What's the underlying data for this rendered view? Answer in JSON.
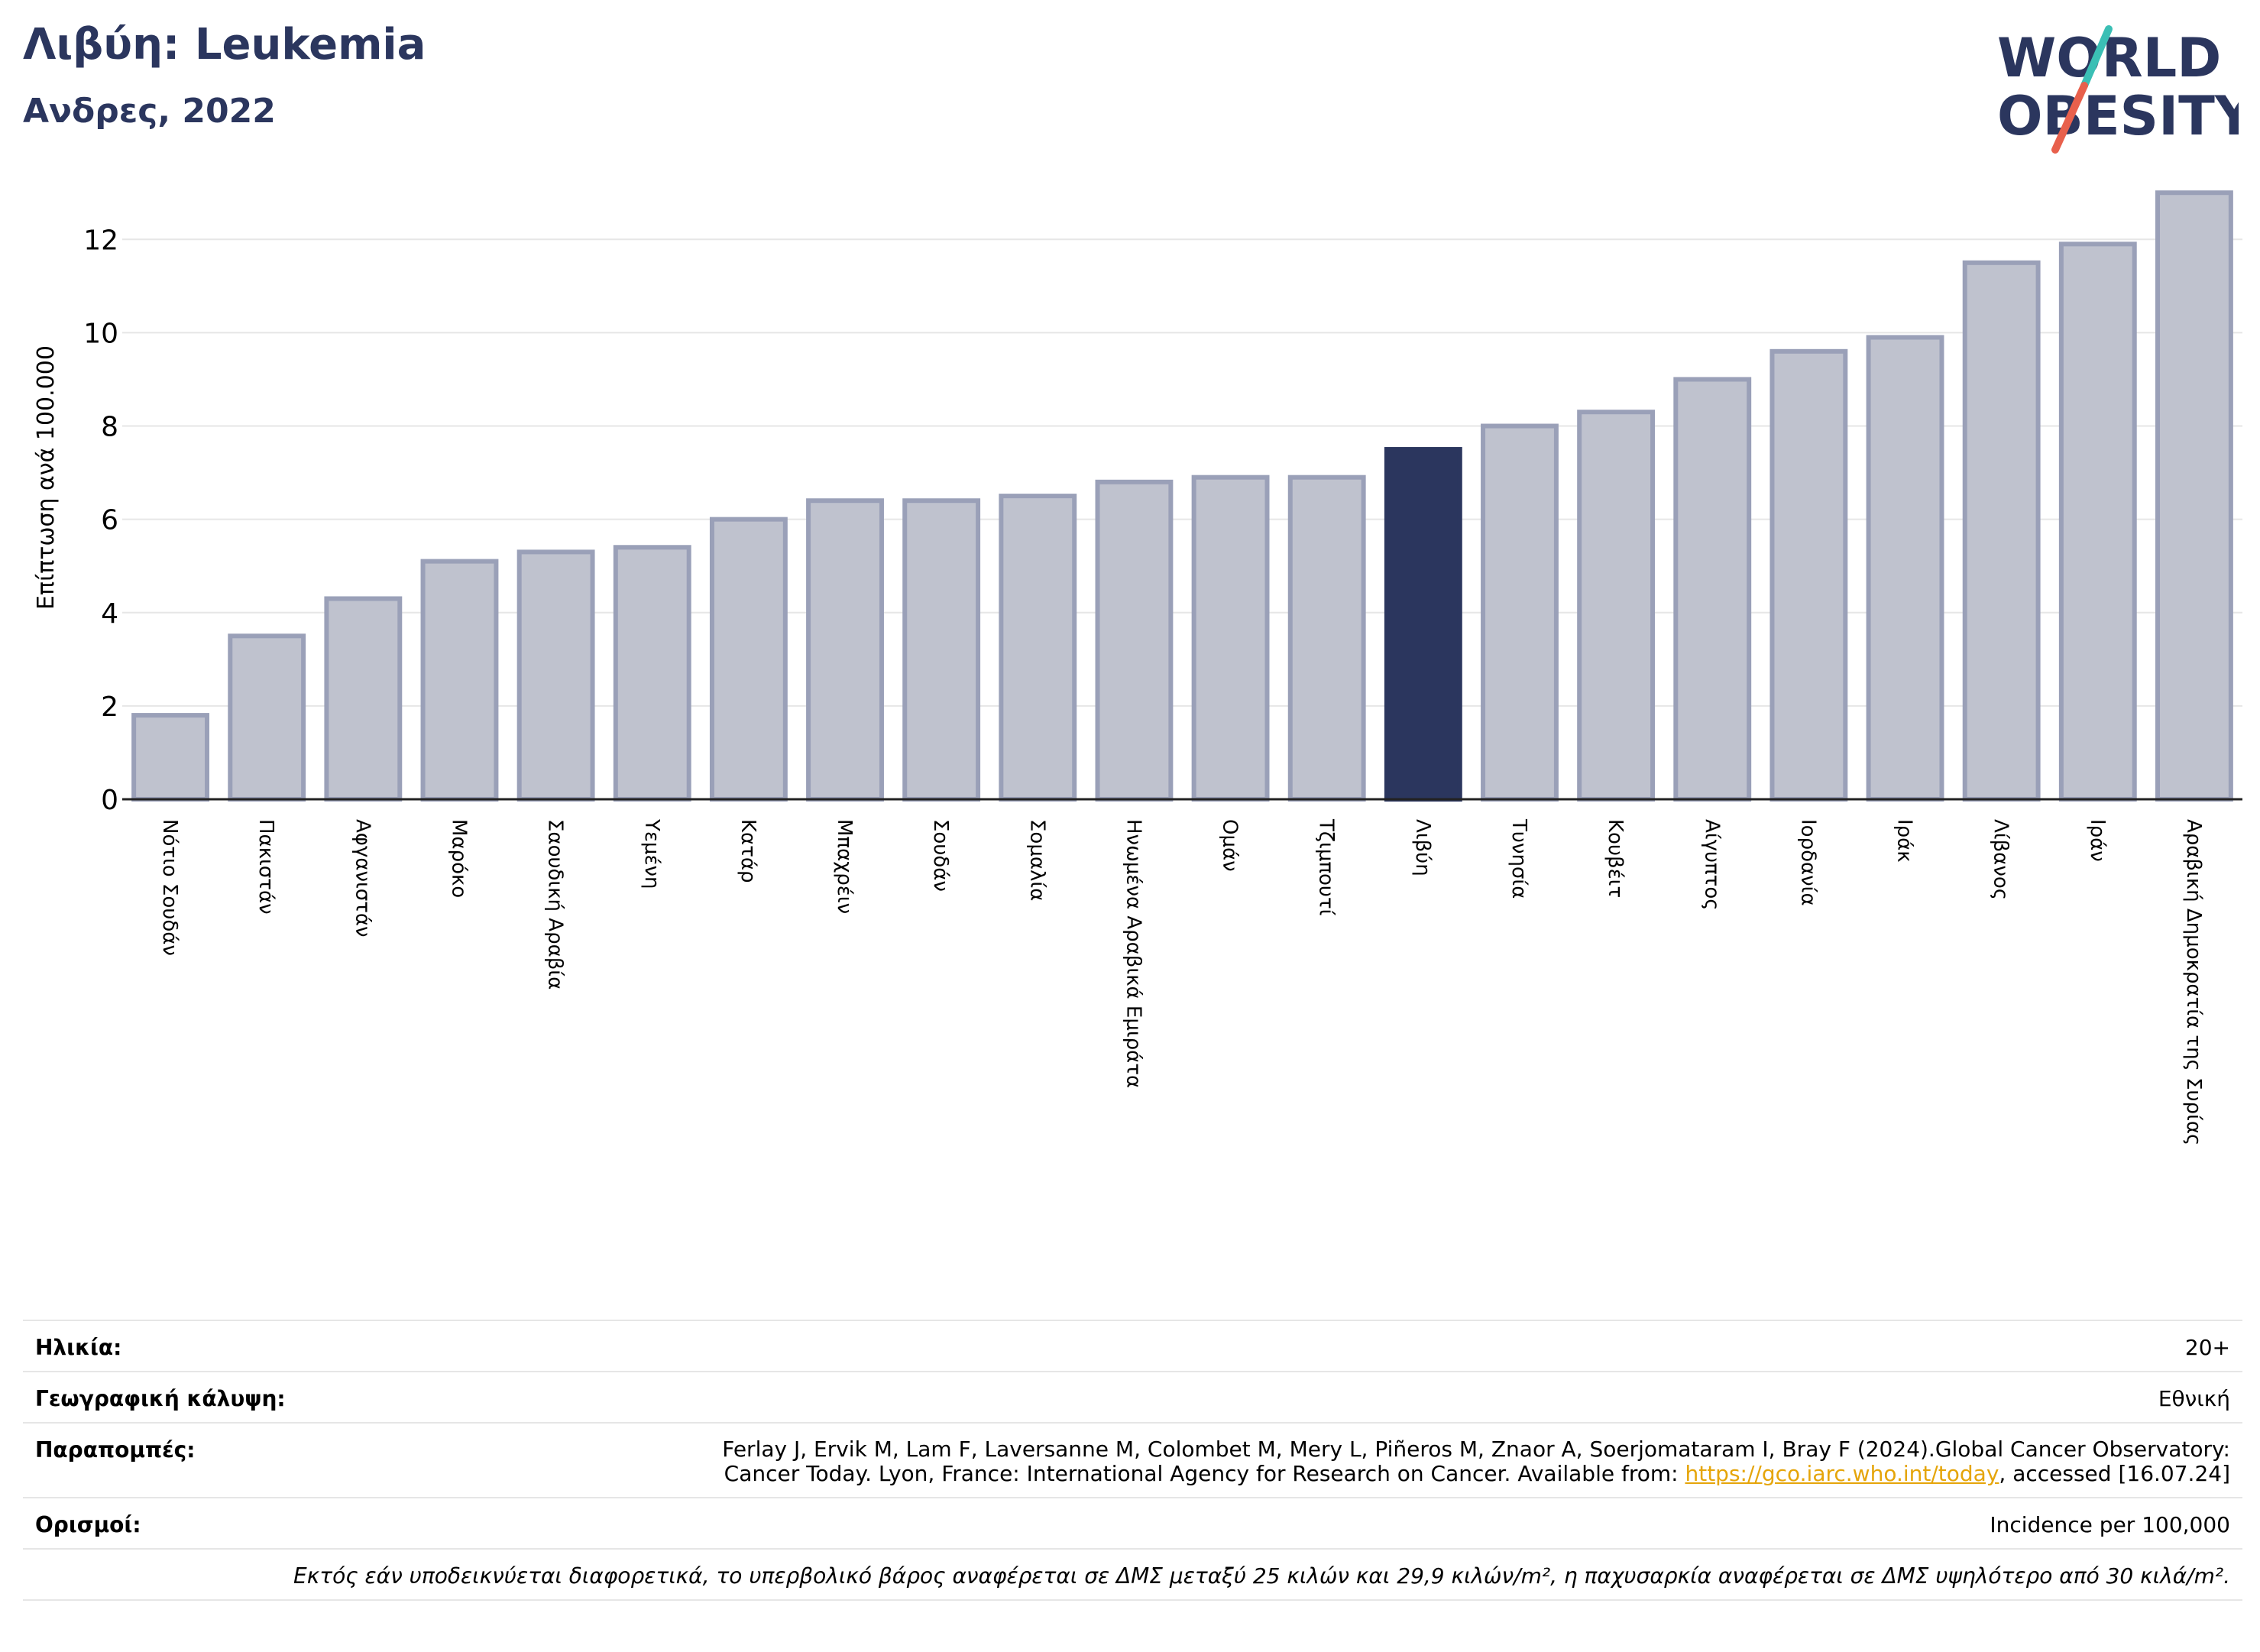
{
  "header": {
    "title": "Λιβύη: Leukemia",
    "subtitle": "Ανδρες, 2022"
  },
  "logo": {
    "line1": "WORLD",
    "line2": "OBESITY",
    "accent_teal": "#3bbfb5",
    "accent_red": "#e8604c",
    "text_color": "#2b365e"
  },
  "chart_data": {
    "type": "bar",
    "title": "Λιβύη: Leukemia",
    "subtitle": "Ανδρες, 2022",
    "ylabel": "Επίπτωση ανά 100.000",
    "xlabel": "",
    "ylim": [
      0,
      13.2
    ],
    "yticks": [
      0,
      2,
      4,
      6,
      8,
      10,
      12
    ],
    "grid": true,
    "highlight": "Λιβύη",
    "colors": {
      "bar": "#bfc2ce",
      "bar_edge": "#9aa0b8",
      "highlight": "#2b365e",
      "axis": "#222222",
      "grid": "#e6e6e6"
    },
    "categories": [
      "Νότιο Σουδάν",
      "Πακιστάν",
      "Αφγανιστάν",
      "Μαρόκο",
      "Σαουδική Αραβία",
      "Υεμένη",
      "Κατάρ",
      "Μπαχρέιν",
      "Σουδάν",
      "Σομαλία",
      "Ηνωμένα Αραβικά Εμιράτα",
      "Ομάν",
      "Τζιμπουτί",
      "Λιβύη",
      "Τυνησία",
      "Κουβέιτ",
      "Αίγυπτος",
      "Ιορδανία",
      "Ιράκ",
      "Λίβανος",
      "Ιράν",
      "Αραβική Δημοκρατία της Συρίας"
    ],
    "values": [
      1.8,
      3.5,
      4.3,
      5.1,
      5.3,
      5.4,
      6.0,
      6.4,
      6.4,
      6.5,
      6.8,
      6.9,
      6.9,
      7.5,
      8.0,
      8.3,
      9.0,
      9.6,
      9.9,
      11.5,
      11.9,
      13.0
    ]
  },
  "meta": {
    "age_label": "Ηλικία:",
    "age_value": "20+",
    "coverage_label": "Γεωγραφική κάλυψη:",
    "coverage_value": "Εθνική",
    "refs_label": "Παραπομπές:",
    "refs_line1": "Ferlay J, Ervik M, Lam F, Laversanne M, Colombet M, Mery L, Piñeros M, Znaor A, Soerjomataram I, Bray F (2024).Global Cancer Observatory:",
    "refs_line2_pre": "Cancer Today. Lyon, France: International Agency for Research on Cancer. Available from: ",
    "refs_link": "https://gco.iarc.who.int/today",
    "refs_line2_post": ", accessed [16.07.24]",
    "definitions_label": "Ορισμοί:",
    "definitions_value": "Incidence per 100,000",
    "note": "Εκτός εάν υποδεικνύεται διαφορετικά, το υπερβολικό βάρος αναφέρεται σε ΔΜΣ μεταξύ 25 κιλών και 29,9 κιλών/m², η παχυσαρκία αναφέρεται σε ΔΜΣ υψηλότερο από 30 κιλά/m²."
  }
}
